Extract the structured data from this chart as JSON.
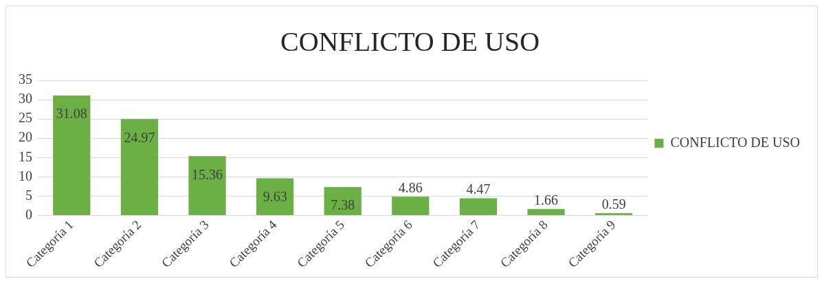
{
  "chart_data": {
    "type": "bar",
    "title": "CONFLICTO DE USO",
    "categories": [
      "Categoría 1",
      "Categoría 2",
      "Categoría 3",
      "Categoría 4",
      "Categoría 5",
      "Categoría 6",
      "Categoría 7",
      "Categoría 8",
      "Categoría 9"
    ],
    "series": [
      {
        "name": "CONFLICTO DE USO",
        "color": "#6ab045",
        "values": [
          31.08,
          24.97,
          15.36,
          9.63,
          7.38,
          4.86,
          4.47,
          1.66,
          0.59
        ]
      }
    ],
    "ylim": [
      0,
      35
    ],
    "yticks": [
      0,
      5,
      10,
      15,
      20,
      25,
      30,
      35
    ],
    "grid": "y",
    "legend": "right",
    "data_labels": true
  }
}
